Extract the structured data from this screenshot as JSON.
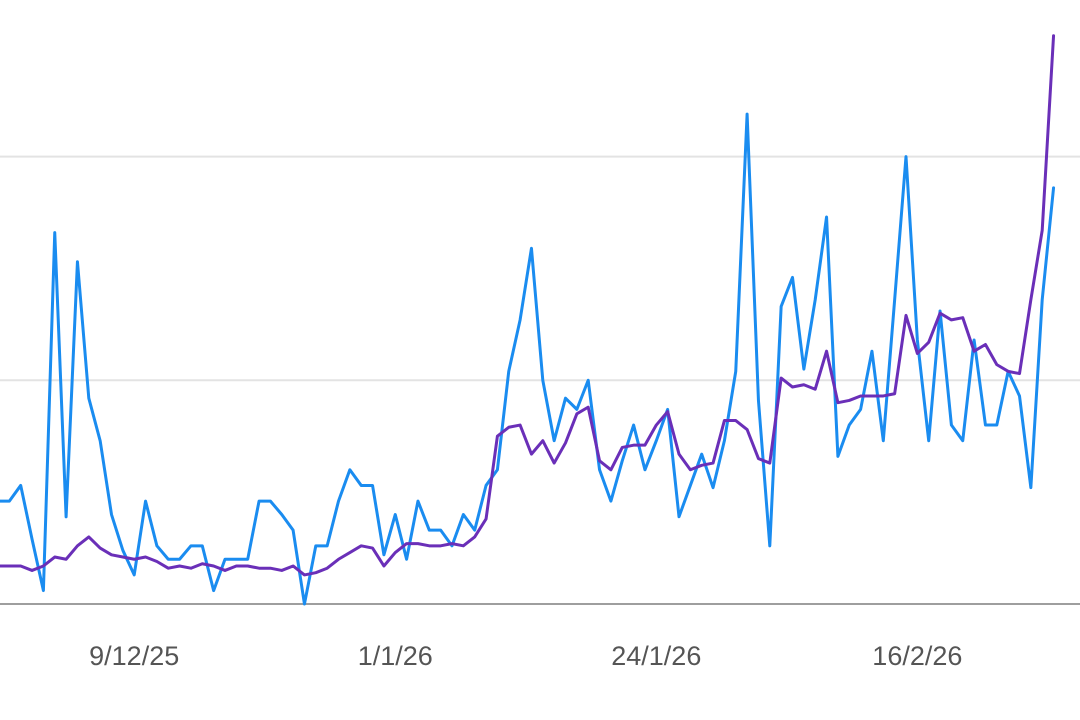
{
  "chart_data": {
    "type": "line",
    "categories": [
      null,
      null,
      null,
      null,
      null,
      null,
      null,
      null,
      null,
      null,
      null,
      null,
      "9/12/25",
      null,
      null,
      null,
      null,
      null,
      null,
      null,
      null,
      null,
      null,
      null,
      null,
      null,
      null,
      null,
      null,
      null,
      null,
      null,
      null,
      null,
      null,
      "1/1/26",
      null,
      null,
      null,
      null,
      null,
      null,
      null,
      null,
      null,
      null,
      null,
      null,
      null,
      null,
      null,
      null,
      null,
      null,
      null,
      null,
      null,
      null,
      "24/1/26",
      null,
      null,
      null,
      null,
      null,
      null,
      null,
      null,
      null,
      null,
      null,
      null,
      null,
      null,
      null,
      null,
      null,
      null,
      null,
      null,
      null,
      null,
      "16/2/26",
      null,
      null,
      null,
      null,
      null,
      null,
      null,
      null,
      null,
      null,
      null,
      null
    ],
    "series": [
      {
        "color": "#1a8cf0",
        "values": [
          0.46,
          0.46,
          0.53,
          0.29,
          0.06,
          1.66,
          0.39,
          1.53,
          0.92,
          0.73,
          0.4,
          0.24,
          0.13,
          0.46,
          0.26,
          0.2,
          0.2,
          0.26,
          0.26,
          0.06,
          0.2,
          0.2,
          0.2,
          0.46,
          0.46,
          0.4,
          0.33,
          0.0,
          0.26,
          0.26,
          0.46,
          0.6,
          0.53,
          0.53,
          0.22,
          0.4,
          0.2,
          0.46,
          0.33,
          0.33,
          0.26,
          0.4,
          0.33,
          0.53,
          0.6,
          1.04,
          1.27,
          1.59,
          1.0,
          0.73,
          0.92,
          0.87,
          1.0,
          0.6,
          0.46,
          0.64,
          0.8,
          0.6,
          0.73,
          0.87,
          0.39,
          0.53,
          0.67,
          0.52,
          0.73,
          1.04,
          2.19,
          0.91,
          0.26,
          1.33,
          1.46,
          1.05,
          1.36,
          1.73,
          0.66,
          0.8,
          0.87,
          1.13,
          0.73,
          1.36,
          2.0,
          1.18,
          0.73,
          1.31,
          0.8,
          0.73,
          1.18,
          0.8,
          0.8,
          1.04,
          0.93,
          0.52,
          1.36,
          1.86
        ]
      },
      {
        "color": "#6a2fb8",
        "values": [
          0.17,
          0.17,
          0.17,
          0.15,
          0.17,
          0.21,
          0.2,
          0.26,
          0.3,
          0.25,
          0.22,
          0.21,
          0.2,
          0.21,
          0.19,
          0.16,
          0.17,
          0.16,
          0.18,
          0.17,
          0.15,
          0.17,
          0.17,
          0.16,
          0.16,
          0.15,
          0.17,
          0.13,
          0.14,
          0.16,
          0.2,
          0.23,
          0.26,
          0.25,
          0.17,
          0.23,
          0.27,
          0.27,
          0.26,
          0.26,
          0.27,
          0.26,
          0.3,
          0.38,
          0.75,
          0.79,
          0.8,
          0.67,
          0.73,
          0.63,
          0.72,
          0.85,
          0.88,
          0.64,
          0.6,
          0.7,
          0.71,
          0.71,
          0.8,
          0.86,
          0.67,
          0.6,
          0.62,
          0.63,
          0.82,
          0.82,
          0.78,
          0.65,
          0.63,
          1.01,
          0.97,
          0.98,
          0.96,
          1.13,
          0.9,
          0.91,
          0.93,
          0.93,
          0.93,
          0.94,
          1.29,
          1.12,
          1.17,
          1.3,
          1.27,
          1.28,
          1.13,
          1.16,
          1.07,
          1.04,
          1.03,
          1.36,
          1.67,
          2.54
        ]
      }
    ],
    "ylim": [
      0,
      2.7
    ],
    "yticks": [
      0,
      1,
      2
    ],
    "grid": true,
    "show_ytick_labels": false
  }
}
